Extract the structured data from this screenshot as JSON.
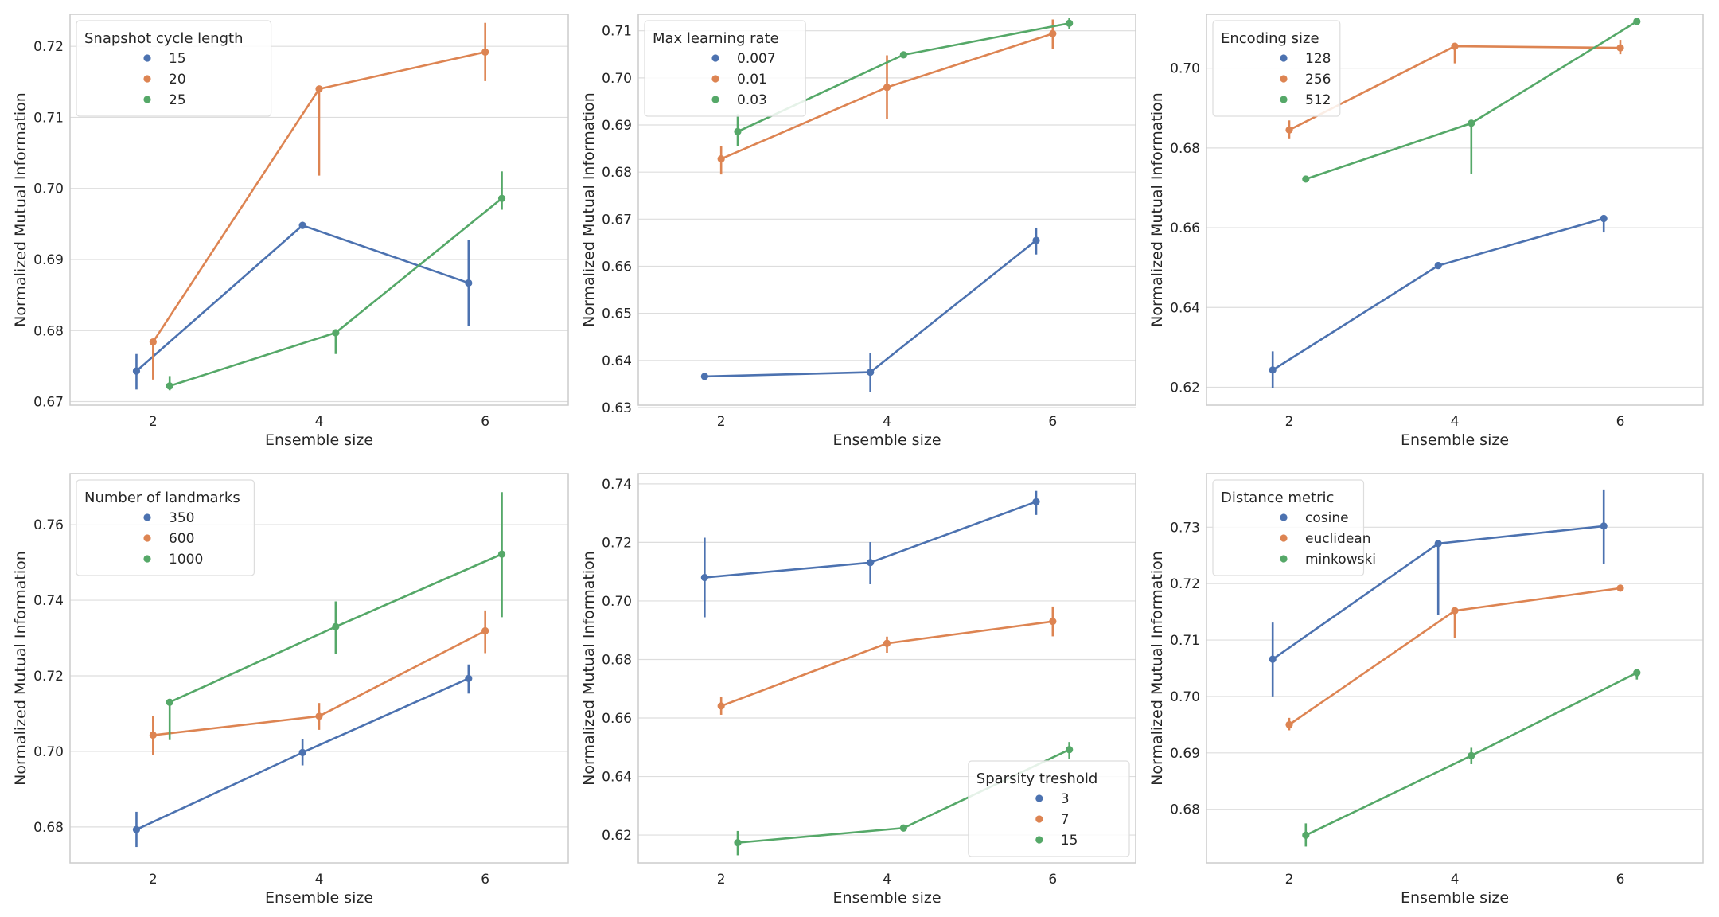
{
  "chart_data": [
    {
      "type": "line",
      "xlabel": "Ensemble size",
      "ylabel": "Normalized Mutual Information",
      "categories": [
        2,
        4,
        6
      ],
      "xlim": [
        1,
        7
      ],
      "ylim": [
        0.6695,
        0.7245
      ],
      "yticks": [
        0.67,
        0.68,
        0.69,
        0.7,
        0.71,
        0.72
      ],
      "ytick_labels": [
        "0.67",
        "0.68",
        "0.69",
        "0.70",
        "0.71",
        "0.72"
      ],
      "legend": {
        "title": "Snapshot cycle length",
        "placement": "top-left"
      },
      "series": [
        {
          "name": "15",
          "color": "#4c72b0",
          "values": [
            0.6743,
            0.6948,
            0.6867
          ],
          "err_low": [
            0.6717,
            0.6946,
            0.6807
          ],
          "err_high": [
            0.6767,
            0.695,
            0.6928
          ]
        },
        {
          "name": "20",
          "color": "#dd8452",
          "values": [
            0.6784,
            0.714,
            0.7192
          ],
          "err_low": [
            0.6731,
            0.7018,
            0.7151
          ],
          "err_high": [
            0.6786,
            0.7142,
            0.7233
          ]
        },
        {
          "name": "25",
          "color": "#55a868",
          "values": [
            0.6722,
            0.6797,
            0.6986
          ],
          "err_low": [
            0.6716,
            0.6767,
            0.697
          ],
          "err_high": [
            0.6736,
            0.6801,
            0.7024
          ]
        }
      ]
    },
    {
      "type": "line",
      "xlabel": "Ensemble size",
      "ylabel": "Normalized Mutual Information",
      "categories": [
        2,
        4,
        6
      ],
      "xlim": [
        1,
        7
      ],
      "ylim": [
        0.6305,
        0.7135
      ],
      "yticks": [
        0.63,
        0.64,
        0.65,
        0.66,
        0.67,
        0.68,
        0.69,
        0.7,
        0.71
      ],
      "ytick_labels": [
        "0.63",
        "0.64",
        "0.65",
        "0.66",
        "0.67",
        "0.68",
        "0.69",
        "0.70",
        "0.71"
      ],
      "legend": {
        "title": "Max learning rate",
        "placement": "top-left"
      },
      "series": [
        {
          "name": "0.007",
          "color": "#4c72b0",
          "values": [
            0.6366,
            0.6375,
            0.6655
          ],
          "err_low": [
            0.6362,
            0.6333,
            0.6625
          ],
          "err_high": [
            0.637,
            0.6416,
            0.6682
          ]
        },
        {
          "name": "0.01",
          "color": "#dd8452",
          "values": [
            0.6828,
            0.698,
            0.7094
          ],
          "err_low": [
            0.6795,
            0.6913,
            0.7062
          ],
          "err_high": [
            0.6856,
            0.7048,
            0.7124
          ]
        },
        {
          "name": "0.03",
          "color": "#55a868",
          "values": [
            0.6886,
            0.7049,
            0.7116
          ],
          "err_low": [
            0.6856,
            0.7044,
            0.7103
          ],
          "err_high": [
            0.6923,
            0.7053,
            0.7128
          ]
        }
      ]
    },
    {
      "type": "line",
      "xlabel": "Ensemble size",
      "ylabel": "Normalized Mutual Information",
      "categories": [
        2,
        4,
        6
      ],
      "xlim": [
        1,
        7
      ],
      "ylim": [
        0.6155,
        0.7135
      ],
      "yticks": [
        0.62,
        0.64,
        0.66,
        0.68,
        0.7
      ],
      "ytick_labels": [
        "0.62",
        "0.64",
        "0.66",
        "0.68",
        "0.70"
      ],
      "legend": {
        "title": "Encoding size",
        "placement": "top-left"
      },
      "series": [
        {
          "name": "128",
          "color": "#4c72b0",
          "values": [
            0.6243,
            0.6505,
            0.6623
          ],
          "err_low": [
            0.6197,
            0.6497,
            0.6588
          ],
          "err_high": [
            0.629,
            0.6514,
            0.6627
          ]
        },
        {
          "name": "256",
          "color": "#dd8452",
          "values": [
            0.6845,
            0.7055,
            0.7051
          ],
          "err_low": [
            0.6824,
            0.7012,
            0.7035
          ],
          "err_high": [
            0.6869,
            0.706,
            0.7071
          ]
        },
        {
          "name": "512",
          "color": "#55a868",
          "values": [
            0.6722,
            0.6862,
            0.7117
          ],
          "err_low": [
            0.6719,
            0.6734,
            0.711
          ],
          "err_high": [
            0.6726,
            0.6866,
            0.7125
          ]
        }
      ]
    },
    {
      "type": "line",
      "xlabel": "Ensemble size",
      "ylabel": "Normalized Mutual Information",
      "categories": [
        2,
        4,
        6
      ],
      "xlim": [
        1,
        7
      ],
      "ylim": [
        0.6705,
        0.7735
      ],
      "yticks": [
        0.68,
        0.7,
        0.72,
        0.74,
        0.76
      ],
      "ytick_labels": [
        "0.68",
        "0.70",
        "0.72",
        "0.74",
        "0.76"
      ],
      "legend": {
        "title": "Number of landmarks",
        "placement": "top-left"
      },
      "series": [
        {
          "name": "350",
          "color": "#4c72b0",
          "values": [
            0.6793,
            0.6997,
            0.7193
          ],
          "err_low": [
            0.6747,
            0.6963,
            0.7153
          ],
          "err_high": [
            0.684,
            0.7033,
            0.723
          ]
        },
        {
          "name": "600",
          "color": "#dd8452",
          "values": [
            0.7043,
            0.7093,
            0.7319
          ],
          "err_low": [
            0.6991,
            0.7057,
            0.726
          ],
          "err_high": [
            0.7094,
            0.7128,
            0.7373
          ]
        },
        {
          "name": "1000",
          "color": "#55a868",
          "values": [
            0.713,
            0.733,
            0.7522
          ],
          "err_low": [
            0.703,
            0.7258,
            0.7355
          ],
          "err_high": [
            0.7133,
            0.7397,
            0.7686
          ]
        }
      ]
    },
    {
      "type": "line",
      "xlabel": "Ensemble size",
      "ylabel": "Normalized Mutual Information",
      "categories": [
        2,
        4,
        6
      ],
      "xlim": [
        1,
        7
      ],
      "ylim": [
        0.6105,
        0.7435
      ],
      "yticks": [
        0.62,
        0.64,
        0.66,
        0.68,
        0.7,
        0.72,
        0.74
      ],
      "ytick_labels": [
        "0.62",
        "0.64",
        "0.66",
        "0.68",
        "0.70",
        "0.72",
        "0.74"
      ],
      "legend": {
        "title": "Sparsity treshold",
        "placement": "bottom-right"
      },
      "series": [
        {
          "name": "3",
          "color": "#4c72b0",
          "values": [
            0.708,
            0.7131,
            0.7339
          ],
          "err_low": [
            0.6944,
            0.7057,
            0.7294
          ],
          "err_high": [
            0.7216,
            0.7201,
            0.7376
          ]
        },
        {
          "name": "7",
          "color": "#dd8452",
          "values": [
            0.6641,
            0.6855,
            0.693
          ],
          "err_low": [
            0.6611,
            0.6823,
            0.6879
          ],
          "err_high": [
            0.6671,
            0.6878,
            0.6981
          ]
        },
        {
          "name": "15",
          "color": "#55a868",
          "values": [
            0.6174,
            0.6224,
            0.6492
          ],
          "err_low": [
            0.6131,
            0.6219,
            0.646
          ],
          "err_high": [
            0.6214,
            0.623,
            0.6518
          ]
        }
      ]
    },
    {
      "type": "line",
      "xlabel": "Ensemble size",
      "ylabel": "Normalized Mutual Information",
      "categories": [
        2,
        4,
        6
      ],
      "xlim": [
        1,
        7
      ],
      "ylim": [
        0.6705,
        0.7395
      ],
      "yticks": [
        0.68,
        0.69,
        0.7,
        0.71,
        0.72,
        0.73
      ],
      "ytick_labels": [
        "0.68",
        "0.69",
        "0.70",
        "0.71",
        "0.72",
        "0.73"
      ],
      "legend": {
        "title": "Distance metric",
        "placement": "top-left"
      },
      "series": [
        {
          "name": "cosine",
          "color": "#4c72b0",
          "values": [
            0.7066,
            0.7271,
            0.7302
          ],
          "err_low": [
            0.7,
            0.7145,
            0.7235
          ],
          "err_high": [
            0.7131,
            0.7273,
            0.7367
          ]
        },
        {
          "name": "euclidean",
          "color": "#dd8452",
          "values": [
            0.695,
            0.7152,
            0.7192
          ],
          "err_low": [
            0.694,
            0.7104,
            0.7188
          ],
          "err_high": [
            0.6962,
            0.7156,
            0.7196
          ]
        },
        {
          "name": "minkowski",
          "color": "#55a868",
          "values": [
            0.6754,
            0.6895,
            0.7042
          ],
          "err_low": [
            0.6734,
            0.688,
            0.703
          ],
          "err_high": [
            0.6775,
            0.6909,
            0.7046
          ]
        }
      ]
    }
  ]
}
